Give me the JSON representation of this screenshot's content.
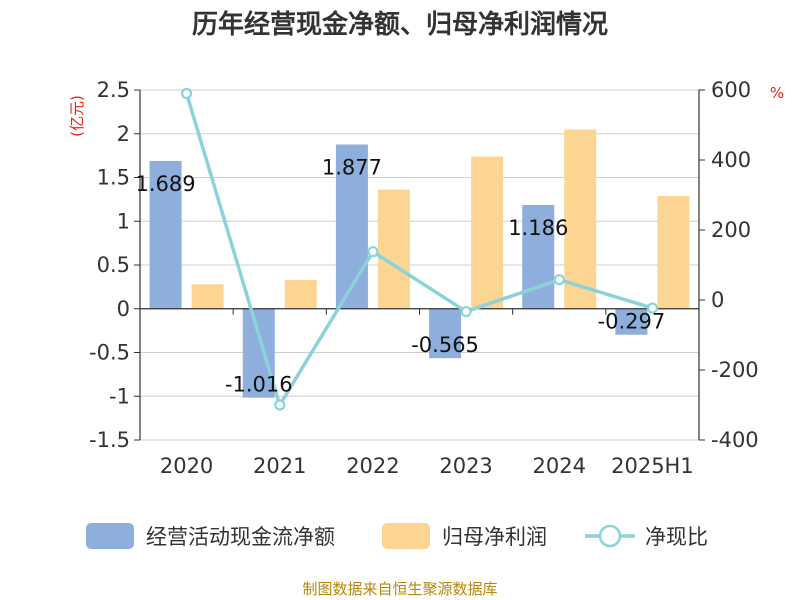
{
  "chart_data": {
    "type": "bar",
    "title": "历年经营现金净额、归母净利润情况",
    "categories": [
      "2020",
      "2021",
      "2022",
      "2023",
      "2024",
      "2025H1"
    ],
    "y_left": {
      "unit": "(亿元)",
      "ylim": [
        -1.5,
        2.5
      ],
      "ticks": [
        "2.5",
        "2",
        "1.5",
        "1",
        "0.5",
        "0",
        "-0.5",
        "-1",
        "-1.5"
      ]
    },
    "y_right": {
      "unit": "%",
      "ylim": [
        -400,
        600
      ],
      "ticks": [
        "600",
        "400",
        "200",
        "0",
        "-200",
        "-400"
      ]
    },
    "series": [
      {
        "name": "经营活动现金流净额",
        "type": "bar",
        "axis": "left",
        "color": "#8eaedc",
        "values": [
          1.689,
          -1.016,
          1.877,
          -0.565,
          1.186,
          -0.297
        ],
        "labels": [
          "1.689",
          "-1.016",
          "1.877",
          "-0.565",
          "1.186",
          "-0.297"
        ]
      },
      {
        "name": "归母净利润",
        "type": "bar",
        "axis": "left",
        "color": "#fdd593",
        "values": [
          0.28,
          0.33,
          1.36,
          1.74,
          2.05,
          1.29
        ]
      },
      {
        "name": "净现比",
        "type": "line",
        "axis": "right",
        "color": "#8bd3d8",
        "values": [
          590,
          -300,
          138,
          -33,
          58,
          -23
        ]
      }
    ],
    "grid": true,
    "legend_position": "bottom"
  },
  "source": "制图数据来自恒生聚源数据库"
}
